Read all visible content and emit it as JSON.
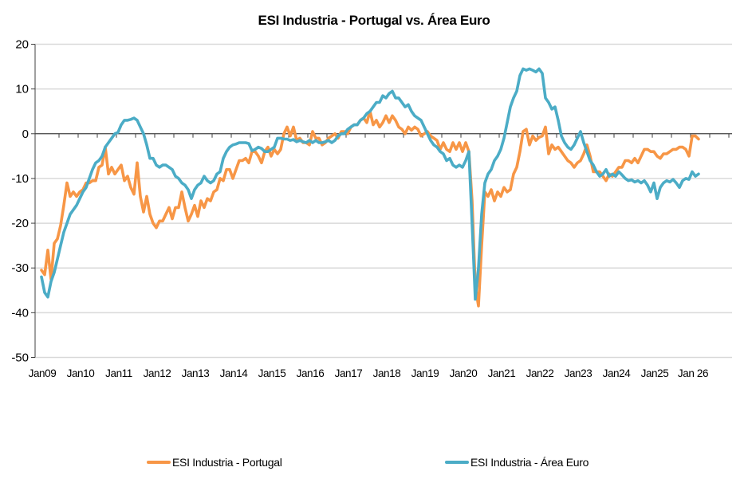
{
  "chart_data": {
    "type": "line",
    "title": "ESI Industria - Portugal vs. Área Euro",
    "xlabel": "",
    "ylabel": "",
    "ylim": [
      -50,
      20
    ],
    "yticks": [
      20,
      10,
      0,
      -10,
      -20,
      -30,
      -40,
      -50
    ],
    "ytick_labels": [
      "20",
      "10",
      "0",
      "-10",
      "-20",
      "-30",
      "-40",
      "-50"
    ],
    "x_start": "Jan 2009",
    "x_frequency": "monthly",
    "xtick_labels": [
      "Jan09",
      "Jan10",
      "Jan11",
      "Jan12",
      "Jan13",
      "Jan14",
      "Jan15",
      "Jan16",
      "Jan17",
      "Jan18",
      "Jan19",
      "Jan20",
      "Jan21",
      "Jan22",
      "Jan23",
      "Jan24",
      "Jan25",
      "Jan 26"
    ],
    "grid": true,
    "legend_position": "bottom",
    "series": [
      {
        "name": "ESI Industria  - Portugal",
        "color": "#F79646",
        "values": [
          -30.5,
          -31.5,
          -26,
          -32.5,
          -24.5,
          -23.5,
          -20.5,
          -16,
          -11,
          -14,
          -13,
          -14,
          -13,
          -12.5,
          -11,
          -11,
          -10.5,
          -10.5,
          -7.5,
          -7,
          -3,
          -9,
          -7.5,
          -9,
          -8,
          -7,
          -10.5,
          -9.5,
          -12,
          -13.5,
          -6.5,
          -14,
          -17.5,
          -14,
          -18,
          -20,
          -21,
          -19.5,
          -19.5,
          -18,
          -16.5,
          -19,
          -16.5,
          -16.5,
          -13,
          -16.5,
          -19.5,
          -18,
          -16,
          -18.5,
          -15,
          -16.5,
          -14.5,
          -15,
          -13,
          -12.5,
          -10,
          -10.5,
          -8,
          -8,
          -10,
          -8,
          -6,
          -6,
          -5.5,
          -6.5,
          -4,
          -4,
          -5,
          -6.5,
          -4,
          -3,
          -5,
          -3.5,
          -4.5,
          -3.5,
          0,
          1.5,
          -0.5,
          1.5,
          -1.5,
          -1,
          -2,
          -2,
          -2.5,
          0.5,
          -1,
          -1,
          -2.5,
          -2,
          -1,
          -0.5,
          0,
          -1,
          0.5,
          0.5,
          0,
          1.5,
          2,
          2,
          3,
          3.5,
          2.5,
          5,
          2,
          3,
          1.5,
          2.5,
          4,
          2.5,
          4,
          3,
          1.5,
          1,
          0,
          1.5,
          0.8,
          1.5,
          1,
          -0.5,
          0,
          0.5,
          -0.5,
          -1,
          -1.5,
          -3.5,
          -2,
          -3.5,
          -4,
          -2,
          -3.5,
          -2,
          -4,
          -2,
          -4,
          -15,
          -34,
          -38.5,
          -25,
          -13,
          -14,
          -12.5,
          -15,
          -13,
          -14,
          -12,
          -13,
          -12.5,
          -9,
          -7.5,
          -4,
          0.5,
          1,
          -2.5,
          -0.5,
          -1.5,
          -0.8,
          -0.5,
          1.5,
          -4.5,
          -2.5,
          -3.5,
          -3,
          -4,
          -5,
          -6,
          -6.5,
          -7.5,
          -6.5,
          -6,
          -4.5,
          -2.5,
          -5,
          -8.5,
          -8.5,
          -8.5,
          -9.5,
          -10.5,
          -9,
          -9.5,
          -8.5,
          -7.5,
          -7.5,
          -6,
          -6,
          -6.5,
          -5.5,
          -6.5,
          -5,
          -3.5,
          -3.5,
          -4,
          -4,
          -5,
          -5.5,
          -4.5,
          -4.5,
          -4,
          -3.5,
          -3.5,
          -3,
          -3,
          -3.5,
          -5,
          -0.5,
          -0.5,
          -1.2
        ]
      },
      {
        "name": "ESI Industria  - Área Euro",
        "color": "#4BACC6",
        "values": [
          -32,
          -35.5,
          -36.5,
          -33,
          -31,
          -28,
          -25,
          -22,
          -20,
          -18,
          -17,
          -16,
          -14.5,
          -13,
          -12,
          -10,
          -8,
          -6.5,
          -6,
          -5,
          -3,
          -2,
          -1,
          0,
          0.3,
          2,
          3,
          3,
          3.2,
          3.5,
          3,
          1.5,
          0,
          -2.5,
          -5.5,
          -5.5,
          -7,
          -7.5,
          -7,
          -7,
          -7.5,
          -8,
          -9.5,
          -10,
          -11,
          -11.5,
          -12.5,
          -14.5,
          -12.5,
          -11.5,
          -11,
          -9.5,
          -10.5,
          -11,
          -10.5,
          -9,
          -8.5,
          -5.5,
          -4,
          -3,
          -2.5,
          -2.3,
          -2,
          -2,
          -2,
          -2.2,
          -3.8,
          -3.5,
          -3,
          -3.3,
          -4,
          -4,
          -3.5,
          -3,
          -1,
          -1,
          -1.2,
          -1.2,
          -1.5,
          -1.3,
          -1.8,
          -1.5,
          -1.8,
          -2,
          -1.5,
          -2,
          -1.5,
          -2,
          -2,
          -1.8,
          -1.5,
          -2,
          -1.5,
          -0.5,
          0,
          0,
          1,
          1.5,
          2,
          2,
          3,
          3.5,
          4.5,
          5,
          6,
          7,
          7,
          8.5,
          8,
          9,
          9.5,
          8,
          8,
          7,
          6,
          6.5,
          5,
          4,
          3.5,
          3,
          1.5,
          0,
          -1.5,
          -2.5,
          -3,
          -4,
          -4.5,
          -6,
          -5.5,
          -7,
          -7.5,
          -7,
          -7.5,
          -6,
          -4,
          -20,
          -37,
          -30,
          -18,
          -11,
          -9,
          -8,
          -6,
          -5,
          -3.5,
          -1,
          2.5,
          6,
          8,
          9.5,
          13,
          14.5,
          14.2,
          14.5,
          14.2,
          13.8,
          14.5,
          13.5,
          8,
          7,
          5.5,
          6,
          3,
          -0.5,
          -2,
          -3,
          -3.5,
          -2.5,
          -1,
          0.5,
          -2,
          -4,
          -6,
          -7,
          -8.5,
          -9.5,
          -9,
          -8,
          -9.5,
          -9,
          -9.5,
          -8.5,
          -9.2,
          -10,
          -10.5,
          -10.3,
          -10.8,
          -10.5,
          -11,
          -10.5,
          -11.5,
          -13,
          -11,
          -14.5,
          -12,
          -11,
          -10.5,
          -10.8,
          -10.2,
          -11,
          -12,
          -10.5,
          -10,
          -10.2,
          -8.5,
          -9.5,
          -9
        ]
      }
    ]
  }
}
